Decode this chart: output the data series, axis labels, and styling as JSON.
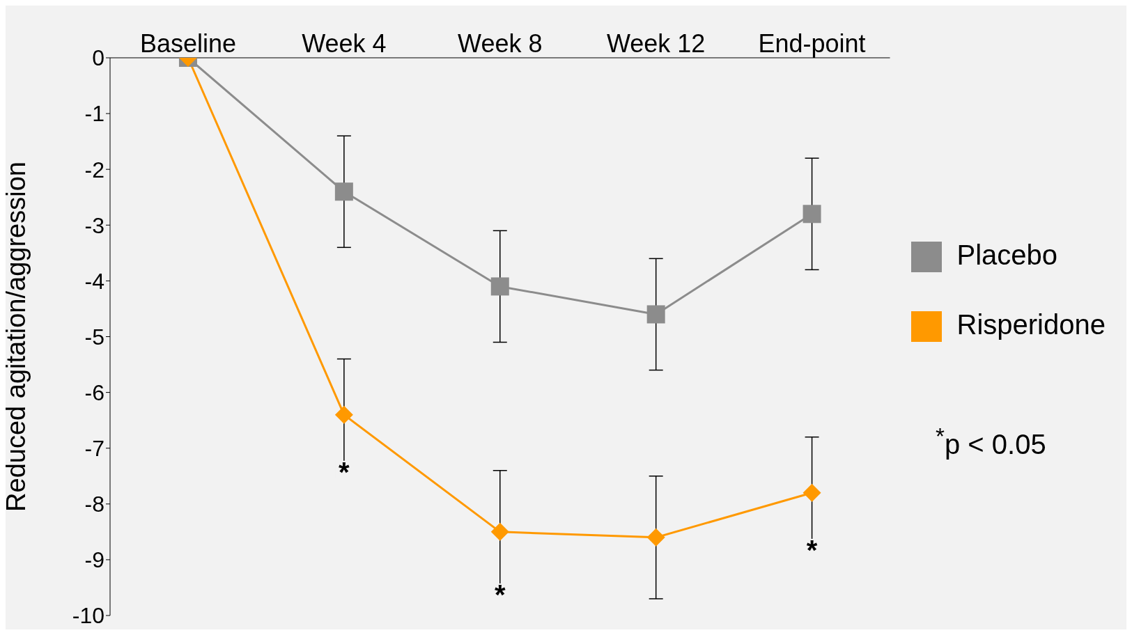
{
  "chart_data": {
    "type": "line",
    "ylabel": "Reduced agitation/aggression",
    "categories": [
      "Baseline",
      "Week 4",
      "Week 8",
      "Week 12",
      "End-point"
    ],
    "series": [
      {
        "name": "Placebo",
        "color": "#8c8c8c",
        "marker": "square",
        "values": [
          0,
          -2.4,
          -4.1,
          -4.6,
          -2.8
        ],
        "errors": [
          null,
          1.0,
          1.0,
          1.0,
          1.0
        ]
      },
      {
        "name": "Risperidone",
        "color": "#ff9900",
        "marker": "diamond",
        "values": [
          0,
          -6.4,
          -8.5,
          -8.6,
          -7.8
        ],
        "errors": [
          null,
          1.0,
          1.1,
          1.1,
          1.0
        ]
      }
    ],
    "ylim": [
      -10,
      0
    ],
    "yticks": [
      0,
      -1,
      -2,
      -3,
      -4,
      -5,
      -6,
      -7,
      -8,
      -9,
      -10
    ],
    "grid": false,
    "legend": "right",
    "annotations": [
      {
        "text": "*",
        "x": "Week 4",
        "y": -7.4
      },
      {
        "text": "*",
        "x": "Week 8",
        "y": -9.6
      },
      {
        "text": "*",
        "x": "End-point",
        "y": -8.8
      },
      "$^{*}$p < 0.05"
    ]
  }
}
